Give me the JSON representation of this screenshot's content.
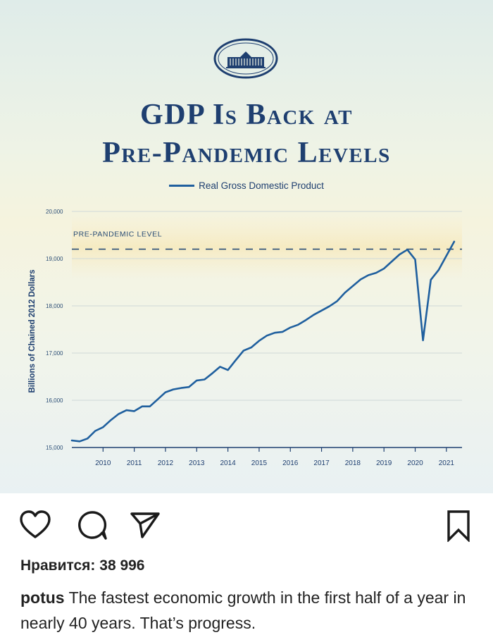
{
  "post": {
    "title_line1": "GDP Is Back at",
    "title_line2": "Pre-Pandemic Levels",
    "likes_text": "Нравится: 38 996",
    "username": "potus",
    "caption": "The fastest economic growth in the first half of a year in nearly 40 years. That’s progress."
  },
  "icons": {
    "logo": "white-house-icon",
    "like": "heart-icon",
    "comment": "comment-icon",
    "share": "send-icon",
    "save": "bookmark-icon"
  },
  "colors": {
    "title": "#1e3f70",
    "line": "#1f5f9e",
    "reference_line": "#2a4d75",
    "background_top": "#dfece9",
    "background_mid": "#f5f3de"
  },
  "chart_data": {
    "type": "line",
    "title": "",
    "xlabel": "",
    "ylabel": "Billions of Chained 2012 Dollars",
    "legend": [
      "Real Gross Domestic Product"
    ],
    "legend_position": "top-center",
    "xlim": [
      2009.0,
      2021.5
    ],
    "ylim": [
      15000,
      20000
    ],
    "x_ticks": [
      2010,
      2011,
      2012,
      2013,
      2014,
      2015,
      2016,
      2017,
      2018,
      2019,
      2020,
      2021
    ],
    "x_tick_labels": [
      "2010",
      "2011",
      "2012",
      "2013",
      "2014",
      "2015",
      "2016",
      "2017",
      "2018",
      "2019",
      "2020",
      "2021"
    ],
    "y_ticks": [
      15000,
      16000,
      17000,
      18000,
      19000,
      20000
    ],
    "y_tick_labels": [
      "15,000",
      "16,000",
      "17,000",
      "18,000",
      "19,000",
      "20,000"
    ],
    "grid": "horizontal",
    "reference_line": {
      "label": "PRE-PANDEMIC LEVEL",
      "y": 19200
    },
    "series": [
      {
        "name": "Real Gross Domestic Product",
        "x": [
          2009.0,
          2009.25,
          2009.5,
          2009.75,
          2010.0,
          2010.25,
          2010.5,
          2010.75,
          2011.0,
          2011.25,
          2011.5,
          2011.75,
          2012.0,
          2012.25,
          2012.5,
          2012.75,
          2013.0,
          2013.25,
          2013.5,
          2013.75,
          2014.0,
          2014.25,
          2014.5,
          2014.75,
          2015.0,
          2015.25,
          2015.5,
          2015.75,
          2016.0,
          2016.25,
          2016.5,
          2016.75,
          2017.0,
          2017.25,
          2017.5,
          2017.75,
          2018.0,
          2018.25,
          2018.5,
          2018.75,
          2019.0,
          2019.25,
          2019.5,
          2019.75,
          2020.0,
          2020.25,
          2020.5,
          2020.75,
          2021.0,
          2021.25
        ],
        "values": [
          15150,
          15130,
          15190,
          15350,
          15430,
          15580,
          15710,
          15790,
          15770,
          15870,
          15870,
          16020,
          16170,
          16230,
          16260,
          16280,
          16420,
          16440,
          16570,
          16710,
          16640,
          16850,
          17050,
          17120,
          17260,
          17370,
          17430,
          17450,
          17540,
          17600,
          17700,
          17810,
          17900,
          17990,
          18100,
          18280,
          18420,
          18560,
          18650,
          18700,
          18790,
          18940,
          19090,
          19190,
          18980,
          17270,
          18550,
          18760,
          19060,
          19360
        ]
      }
    ]
  }
}
